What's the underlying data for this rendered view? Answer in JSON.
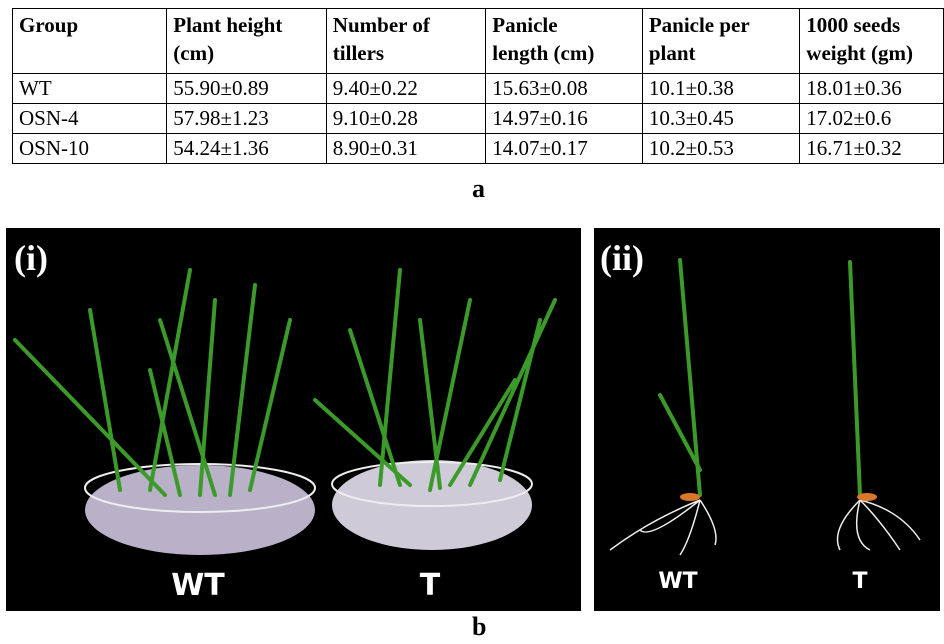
{
  "table": {
    "header": [
      [
        "Group"
      ],
      [
        "Plant height",
        "(cm)"
      ],
      [
        "Number of",
        "tillers"
      ],
      [
        "Panicle",
        "length (cm)"
      ],
      [
        "Panicle per",
        "plant"
      ],
      [
        "1000 seeds",
        "weight (gm)"
      ]
    ],
    "rows": [
      [
        "WT",
        "55.90±0.89",
        "9.40±0.22",
        "15.63±0.08",
        "10.1±0.38",
        "18.01±0.36"
      ],
      [
        "OSN-4",
        "57.98±1.23",
        "9.10±0.28",
        "14.97±0.16",
        "10.3±0.45",
        "17.02±0.6"
      ],
      [
        "OSN-10",
        "54.24±1.36",
        "8.90±0.31",
        "14.07±0.17",
        "10.2±0.53",
        "16.71±0.32"
      ]
    ]
  },
  "caption_a": "a",
  "panel_i": {
    "label": "(i)",
    "left": "WT",
    "right": "T"
  },
  "panel_ii": {
    "label": "(ii)",
    "left": "WT",
    "right": "T"
  },
  "caption_b": "b"
}
